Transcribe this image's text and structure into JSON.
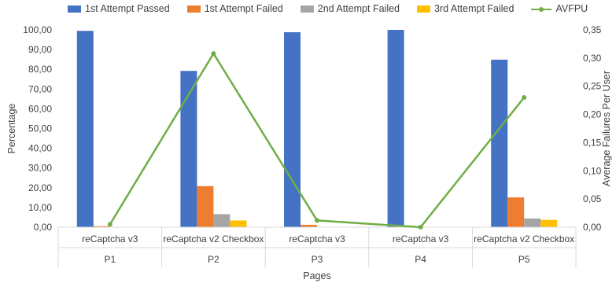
{
  "chart_data": {
    "type": "bar",
    "x_title": "Pages",
    "ylabel": "Percentage",
    "y2label": "Average Failures Per User",
    "ylim": [
      0,
      100
    ],
    "y_ticks": [
      "0,00",
      "10,00",
      "20,00",
      "30,00",
      "40,00",
      "50,00",
      "60,00",
      "70,00",
      "80,00",
      "90,00",
      "100,00"
    ],
    "y2lim": [
      0,
      0.35
    ],
    "y2_ticks": [
      "0,00",
      "0,05",
      "0,10",
      "0,15",
      "0,20",
      "0,25",
      "0,30",
      "0,35"
    ],
    "categories": [
      {
        "page": "P1",
        "captcha": "reCaptcha v3"
      },
      {
        "page": "P2",
        "captcha": "reCaptcha v2 Checkbox"
      },
      {
        "page": "P3",
        "captcha": "reCaptcha v3"
      },
      {
        "page": "P4",
        "captcha": "reCaptcha v3"
      },
      {
        "page": "P5",
        "captcha": "reCaptcha v2 Checkbox"
      }
    ],
    "series": [
      {
        "name": "1st Attempt Passed",
        "type": "bar",
        "color": "#4472C4",
        "values": [
          99.5,
          79.2,
          98.8,
          100.0,
          84.9
        ]
      },
      {
        "name": "1st Attempt Failed",
        "type": "bar",
        "color": "#ED7D31",
        "values": [
          0.5,
          20.8,
          1.2,
          0.0,
          15.1
        ]
      },
      {
        "name": "2nd Attempt Failed",
        "type": "bar",
        "color": "#A5A5A5",
        "values": [
          0.0,
          6.6,
          0.0,
          0.0,
          4.4
        ]
      },
      {
        "name": "3rd Attempt Failed",
        "type": "bar",
        "color": "#FFC000",
        "values": [
          0.0,
          3.4,
          0.0,
          0.0,
          3.7
        ]
      },
      {
        "name": "AVFPU",
        "type": "line",
        "axis": "right",
        "color": "#70AD47",
        "values": [
          0.005,
          0.308,
          0.012,
          0.0,
          0.23
        ]
      }
    ],
    "legend_position": "top",
    "grid": false
  }
}
